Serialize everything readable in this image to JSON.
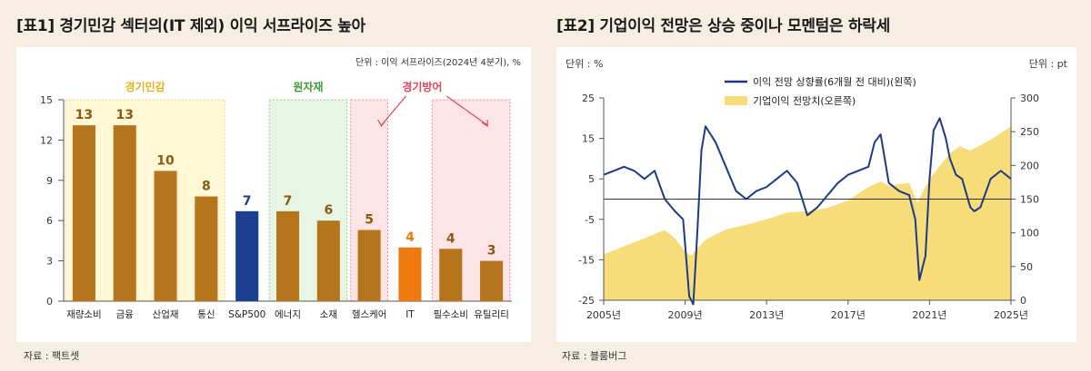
{
  "charts": [
    {
      "title": "[표1] 경기민감 섹터의(IT 제외) 이익 서프라이즈 높아",
      "unit_note": "단위 : 이익 서프라이즈(2024년 4분기), %",
      "source": "자료 : 팩트셋",
      "groups": {
        "cyclical": "경기민감",
        "materials": "원자재",
        "defensive": "경기방어"
      },
      "colors": {
        "bar": "#b5751c",
        "sp500": "#1d3f8f",
        "it": "#ee7a0f",
        "cyclical_bg": "#fff7d6",
        "materials_bg": "#e9f5e4",
        "defensive_bg": "#fde4e6"
      }
    },
    {
      "title": "[표2] 기업이익 전망은 상승 중이나 모멘텀은 하락세",
      "unit_left": "단위 : %",
      "unit_right": "단위 : pt",
      "source": "자료 : 블룸버그",
      "colors": {
        "line": "#1d3a86",
        "area": "#f6dd7a"
      }
    }
  ],
  "chart_data": [
    {
      "type": "bar",
      "categories": [
        "재량소비",
        "금융",
        "산업재",
        "통신",
        "S&P500",
        "에너지",
        "소재",
        "헬스케어",
        "IT",
        "필수소비",
        "유틸리티"
      ],
      "values": [
        13.1,
        13.1,
        9.7,
        7.8,
        6.7,
        6.7,
        6.0,
        5.3,
        4.0,
        3.9,
        3.0
      ],
      "data_labels": [
        "13",
        "13",
        "10",
        "8",
        "7",
        "7",
        "6",
        "5",
        "4",
        "4",
        "3"
      ],
      "ylim": [
        0,
        15
      ],
      "yticks": [
        0,
        3,
        6,
        9,
        12,
        15
      ],
      "bar_colors": [
        "#b5751c",
        "#b5751c",
        "#b5751c",
        "#b5751c",
        "#1d3f8f",
        "#b5751c",
        "#b5751c",
        "#b5751c",
        "#ee7a0f",
        "#b5751c",
        "#b5751c"
      ],
      "label_colors": [
        "#8a5a14",
        "#8a5a14",
        "#8a5a14",
        "#8a5a14",
        "#1d3f8f",
        "#8a5a14",
        "#8a5a14",
        "#8a5a14",
        "#ee7a0f",
        "#8a5a14",
        "#8a5a14"
      ]
    },
    {
      "type": "line",
      "xlim": [
        2005,
        2025
      ],
      "xticks": [
        2005,
        2009,
        2013,
        2017,
        2021,
        2025
      ],
      "xtick_labels": [
        "2005년",
        "2009년",
        "2013년",
        "2017년",
        "2021년",
        "2025년"
      ],
      "ylim_left": [
        -25,
        25
      ],
      "yticks_left": [
        -25,
        -15,
        -5,
        5,
        15,
        25
      ],
      "ylim_right": [
        0,
        300
      ],
      "yticks_right": [
        0,
        50,
        100,
        150,
        200,
        250,
        300
      ],
      "reference_line_left": 0,
      "series": [
        {
          "name": "이익 전망 상향률(6개월 전 대비)(왼쪽)",
          "axis": "left",
          "x": [
            2005.0,
            2005.5,
            2006.0,
            2006.5,
            2007.0,
            2007.5,
            2008.0,
            2008.5,
            2008.9,
            2009.2,
            2009.4,
            2009.6,
            2009.8,
            2010.0,
            2010.5,
            2011.0,
            2011.5,
            2012.0,
            2012.5,
            2013.0,
            2013.5,
            2014.0,
            2014.5,
            2015.0,
            2015.5,
            2016.0,
            2016.5,
            2017.0,
            2017.5,
            2018.0,
            2018.3,
            2018.6,
            2019.0,
            2019.5,
            2020.0,
            2020.3,
            2020.5,
            2020.8,
            2021.0,
            2021.2,
            2021.5,
            2021.8,
            2022.0,
            2022.3,
            2022.6,
            2023.0,
            2023.2,
            2023.5,
            2024.0,
            2024.5,
            2025.0
          ],
          "y": [
            6,
            7,
            8,
            7,
            5,
            7,
            0,
            -3,
            -5,
            -24,
            -26,
            -8,
            12,
            18,
            14,
            8,
            2,
            0,
            2,
            3,
            5,
            7,
            4,
            -4,
            -2,
            1,
            4,
            6,
            7,
            8,
            14,
            16,
            4,
            2,
            1,
            -5,
            -20,
            -14,
            5,
            17,
            20,
            15,
            10,
            6,
            5,
            -2,
            -3,
            -2,
            5,
            7,
            5
          ]
        },
        {
          "name": "기업이익 전망치(오른쪽)",
          "axis": "right",
          "x": [
            2005.0,
            2006.0,
            2007.0,
            2008.0,
            2008.5,
            2009.0,
            2009.3,
            2010.0,
            2011.0,
            2012.0,
            2013.0,
            2014.0,
            2015.0,
            2016.0,
            2017.0,
            2018.0,
            2018.6,
            2019.0,
            2020.0,
            2020.4,
            2021.0,
            2022.0,
            2022.5,
            2023.0,
            2024.0,
            2025.0
          ],
          "y": [
            68,
            80,
            92,
            104,
            92,
            72,
            66,
            90,
            105,
            112,
            120,
            130,
            132,
            137,
            148,
            168,
            176,
            170,
            174,
            145,
            180,
            218,
            228,
            222,
            238,
            258
          ]
        }
      ]
    }
  ]
}
